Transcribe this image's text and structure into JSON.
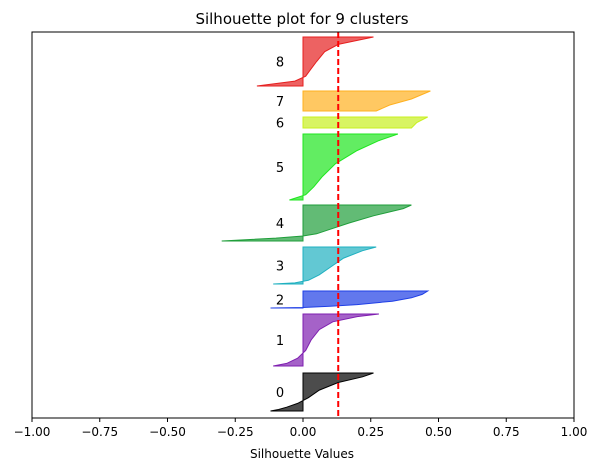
{
  "chart_data": {
    "type": "area",
    "title": "Silhouette plot for 9 clusters",
    "xlabel": "Silhouette Values",
    "ylabel": "",
    "xlim": [
      -1.0,
      1.0
    ],
    "xticks": [
      "−1.00",
      "−0.75",
      "−0.50",
      "−0.25",
      "0.00",
      "0.25",
      "0.50",
      "0.75",
      "1.00"
    ],
    "yticks": "none",
    "grid": false,
    "average_silhouette": 0.13,
    "average_line_color": "#ff0000",
    "clusters": [
      {
        "label": "0",
        "color": "#000000",
        "profile": [
          [
            0,
            0.26
          ],
          [
            0.1,
            0.22
          ],
          [
            0.25,
            0.13
          ],
          [
            0.45,
            0.06
          ],
          [
            0.65,
            0.02
          ],
          [
            0.8,
            -0.02
          ],
          [
            0.9,
            -0.06
          ],
          [
            0.96,
            -0.09
          ],
          [
            1,
            -0.12
          ]
        ]
      },
      {
        "label": "1",
        "color": "#7f1fb0",
        "profile": [
          [
            0,
            0.28
          ],
          [
            0.05,
            0.2
          ],
          [
            0.15,
            0.11
          ],
          [
            0.3,
            0.06
          ],
          [
            0.5,
            0.03
          ],
          [
            0.7,
            0.01
          ],
          [
            0.85,
            -0.02
          ],
          [
            0.95,
            -0.06
          ],
          [
            1,
            -0.11
          ]
        ]
      },
      {
        "label": "2",
        "color": "#1f3fe6",
        "profile": [
          [
            0,
            0.46
          ],
          [
            0.2,
            0.44
          ],
          [
            0.4,
            0.4
          ],
          [
            0.6,
            0.33
          ],
          [
            0.8,
            0.2
          ],
          [
            0.9,
            0.1
          ],
          [
            0.97,
            0.0
          ],
          [
            1,
            -0.12
          ]
        ]
      },
      {
        "label": "3",
        "color": "#1fb0c0",
        "profile": [
          [
            0,
            0.27
          ],
          [
            0.1,
            0.22
          ],
          [
            0.3,
            0.15
          ],
          [
            0.55,
            0.1
          ],
          [
            0.75,
            0.06
          ],
          [
            0.9,
            0.02
          ],
          [
            0.97,
            -0.03
          ],
          [
            1,
            -0.11
          ]
        ]
      },
      {
        "label": "4",
        "color": "#1f9e3a",
        "profile": [
          [
            0,
            0.4
          ],
          [
            0.1,
            0.37
          ],
          [
            0.3,
            0.26
          ],
          [
            0.5,
            0.17
          ],
          [
            0.7,
            0.09
          ],
          [
            0.8,
            0.05
          ],
          [
            0.86,
            0.0
          ],
          [
            0.92,
            -0.1
          ],
          [
            1,
            -0.3
          ]
        ]
      },
      {
        "label": "5",
        "color": "#1fe61f",
        "profile": [
          [
            0,
            0.35
          ],
          [
            0.1,
            0.28
          ],
          [
            0.25,
            0.2
          ],
          [
            0.45,
            0.12
          ],
          [
            0.65,
            0.07
          ],
          [
            0.8,
            0.04
          ],
          [
            0.92,
            0.01
          ],
          [
            1,
            -0.05
          ]
        ]
      },
      {
        "label": "6",
        "color": "#c8f01f",
        "profile": [
          [
            0,
            0.46
          ],
          [
            0.5,
            0.42
          ],
          [
            1,
            0.4
          ]
        ]
      },
      {
        "label": "7",
        "color": "#ffb01f",
        "profile": [
          [
            0,
            0.47
          ],
          [
            0.4,
            0.4
          ],
          [
            0.7,
            0.32
          ],
          [
            1,
            0.27
          ]
        ]
      },
      {
        "label": "8",
        "color": "#e61f1f",
        "profile": [
          [
            0,
            0.26
          ],
          [
            0.15,
            0.13
          ],
          [
            0.3,
            0.08
          ],
          [
            0.5,
            0.05
          ],
          [
            0.65,
            0.03
          ],
          [
            0.8,
            0.01
          ],
          [
            0.9,
            -0.03
          ],
          [
            1,
            -0.17
          ]
        ]
      }
    ]
  }
}
